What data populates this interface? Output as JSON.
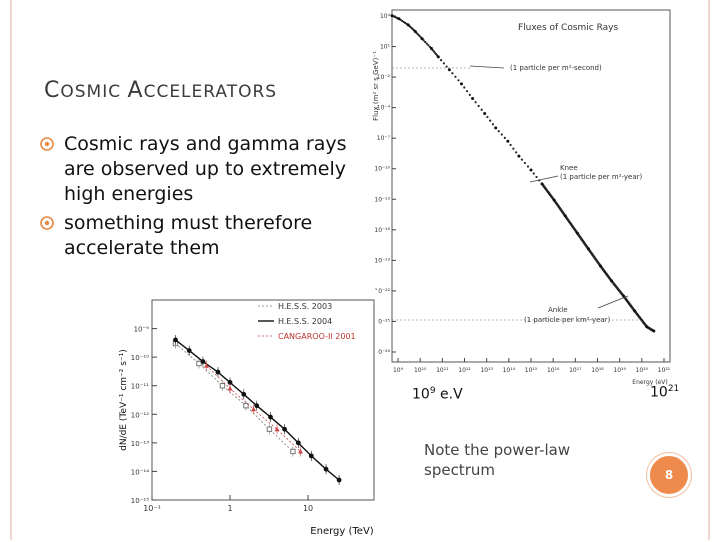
{
  "slide": {
    "title_first_cap": "C",
    "title_rest_1": "OSMIC ",
    "title_second_cap": "A",
    "title_rest_2": "CCELERATORS",
    "bullets": [
      "Cosmic rays and gamma rays are observed up to extremely high energies",
      "something must therefore accelerate them"
    ],
    "energy_low": {
      "base": "10",
      "exp": "9",
      "unit": "e.V"
    },
    "energy_high": {
      "base": "10",
      "exp": "21"
    },
    "note": "Note the power-law spectrum",
    "page_number": "8"
  },
  "colors": {
    "accent": "#ee8a4b",
    "bullet": "#e8893f",
    "frame": "#f0d6cf"
  },
  "chart_data": [
    {
      "type": "scatter",
      "title": "Fluxes of Cosmic Rays",
      "ylabel": "Flux (m² sr s GeV)⁻¹",
      "xlabel": "Energy (eV)",
      "x_scale": "log",
      "y_scale": "log",
      "xlim": [
        1000000000.0,
        1e+21
      ],
      "ylim": [
        1e-29,
        10000.0
      ],
      "x_ticks": [
        "10⁹",
        "10¹⁰",
        "10¹¹",
        "10¹²",
        "10¹³",
        "10¹⁴",
        "10¹⁵",
        "10¹⁶",
        "10¹⁷",
        "10¹⁸",
        "10¹⁹",
        "10²⁰",
        "10²¹"
      ],
      "y_ticks": [
        "10⁴",
        "10¹",
        "10⁻²",
        "10⁻⁴",
        "10⁻⁷",
        "10⁻¹⁰",
        "10⁻¹³",
        "10⁻¹⁶",
        "10⁻¹⁹",
        "10⁻²²",
        "10⁻²⁵",
        "10⁻²⁸"
      ],
      "annotations": [
        {
          "text": "(1 particle per m²-second)",
          "x": 100000000000.0,
          "y": 1
        },
        {
          "text": "Knee",
          "x": 4000000000000000.0,
          "y": 1e-13
        },
        {
          "text": "(1 particle per m²-year)",
          "x": 4000000000000000.0,
          "y": 1e-13
        },
        {
          "text": "Ankle",
          "x": 1e+19,
          "y": 1e-24
        },
        {
          "text": "(1 particle per km²-year)",
          "x": 1e+19,
          "y": 1e-24
        }
      ],
      "x": [
        1000000000.0,
        2000000000.0,
        5000000000.0,
        10000000000.0,
        20000000000.0,
        50000000000.0,
        100000000000.0,
        300000000000.0,
        1000000000000.0,
        3000000000000.0,
        10000000000000.0,
        30000000000000.0,
        100000000000000.0,
        300000000000000.0,
        1000000000000000.0,
        3000000000000000.0,
        1e+16,
        3e+16,
        1e+17,
        3e+17,
        1e+18,
        3e+18,
        1e+19,
        3e+19,
        1e+20,
        2e+20
      ],
      "y": [
        3000,
        1500,
        400,
        100,
        20,
        2.5,
        0.4,
        0.025,
        0.0012,
        5e-05,
        2e-06,
        9e-08,
        5e-09,
        2e-10,
        1e-11,
        5e-13,
        1.5e-14,
        5e-16,
        1.2e-17,
        4e-19,
        1e-20,
        4e-22,
        1.5e-23,
        6e-25,
        2e-26,
        8e-27
      ]
    },
    {
      "type": "scatter",
      "ylabel": "dN/dE (TeV⁻¹ cm⁻² s⁻¹)",
      "xlabel": "Energy (TeV)",
      "x_scale": "log",
      "y_scale": "log",
      "xlim": [
        0.1,
        70
      ],
      "ylim": [
        1e-15,
        1e-08
      ],
      "x_ticks": [
        "10⁻¹",
        "1",
        "10"
      ],
      "y_ticks": [
        "10⁻⁹",
        "10⁻¹⁰",
        "10⁻¹¹",
        "10⁻¹²",
        "10⁻¹³",
        "10⁻¹⁴",
        "10⁻¹⁵"
      ],
      "series": [
        {
          "name": "H.E.S.S. 2003",
          "color": "#777777",
          "x": [
            0.2,
            0.4,
            0.8,
            1.6,
            3.2,
            6.4
          ],
          "y": [
            3e-10,
            6e-11,
            1e-11,
            2e-12,
            3e-13,
            5e-14
          ]
        },
        {
          "name": "H.E.S.S. 2004",
          "color": "#111111",
          "x": [
            0.2,
            0.3,
            0.45,
            0.7,
            1.0,
            1.5,
            2.2,
            3.3,
            5,
            7.5,
            11,
            17,
            25
          ],
          "y": [
            4e-10,
            1.7e-10,
            7e-11,
            3e-11,
            1.3e-11,
            5e-12,
            2e-12,
            8e-13,
            3e-13,
            1e-13,
            3.5e-14,
            1.2e-14,
            5e-15
          ]
        },
        {
          "name": "CANGAROO-II 2001",
          "color": "#cc4444",
          "x": [
            0.5,
            1.0,
            2.0,
            4.0,
            8.0
          ],
          "y": [
            5e-11,
            8e-12,
            1.5e-12,
            3e-13,
            5e-14
          ]
        }
      ]
    }
  ]
}
